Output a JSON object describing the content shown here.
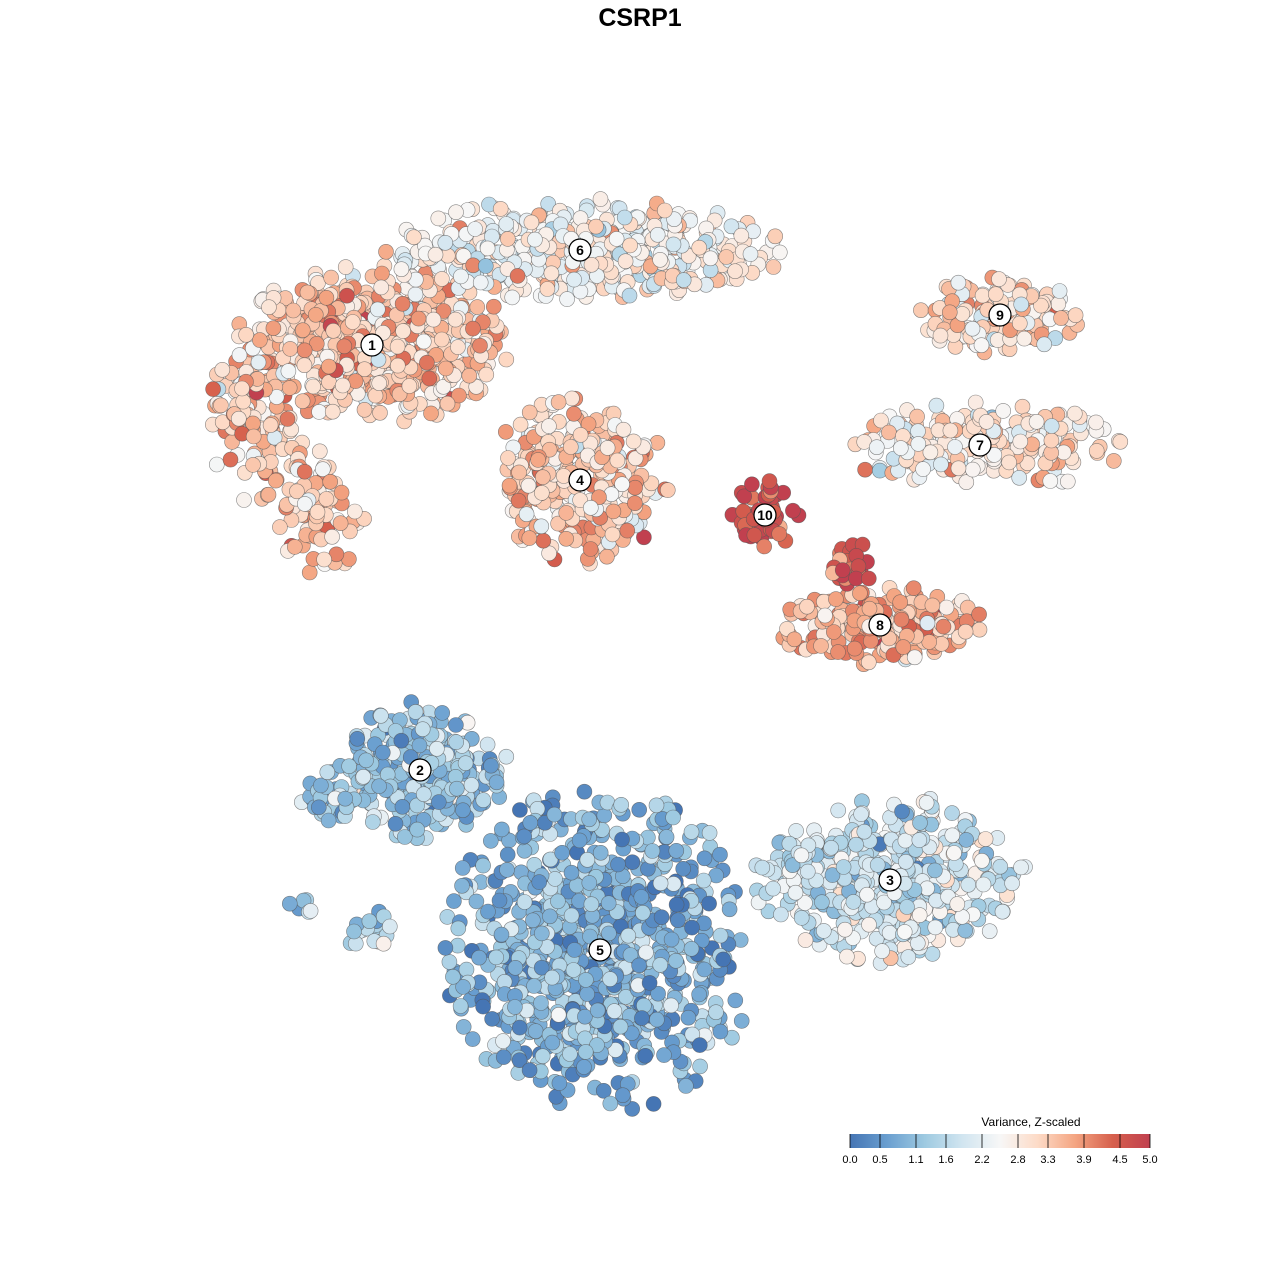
{
  "chart_data": {
    "type": "scatter",
    "title": "CSRP1",
    "legend": {
      "title": "Variance, Z-scaled",
      "placement": "bottom-right",
      "range": [
        0.0,
        5.0
      ],
      "ticks": [
        "0.0",
        "0.5",
        "1.1",
        "1.6",
        "2.2",
        "2.8",
        "3.3",
        "3.9",
        "4.5",
        "5.0"
      ],
      "colors": [
        "#4575b4",
        "#6a9fd0",
        "#9ecae1",
        "#d1e5f0",
        "#f7f7f7",
        "#fddbc7",
        "#f4a582",
        "#d6604d",
        "#c1404f"
      ]
    },
    "grid": false,
    "axes_visible": false,
    "clusters": [
      {
        "label": "1",
        "mean_value": 3.3,
        "regions": [
          [
            372,
            345,
            125,
            70,
            650
          ],
          [
            260,
            440,
            55,
            55,
            60
          ],
          [
            320,
            515,
            40,
            55,
            80
          ],
          [
            240,
            400,
            30,
            40,
            40
          ]
        ]
      },
      {
        "label": "2",
        "mean_value": 1.2,
        "regions": [
          [
            420,
            770,
            80,
            60,
            330
          ],
          [
            330,
            800,
            30,
            25,
            40
          ],
          [
            370,
            930,
            25,
            20,
            20
          ],
          [
            300,
            905,
            12,
            10,
            8
          ]
        ]
      },
      {
        "label": "3",
        "mean_value": 1.9,
        "regions": [
          [
            890,
            880,
            120,
            75,
            500
          ]
        ]
      },
      {
        "label": "4",
        "mean_value": 3.2,
        "regions": [
          [
            580,
            480,
            80,
            75,
            330
          ]
        ]
      },
      {
        "label": "5",
        "mean_value": 0.9,
        "regions": [
          [
            600,
            950,
            140,
            145,
            900
          ]
        ]
      },
      {
        "label": "6",
        "mean_value": 2.6,
        "regions": [
          [
            580,
            250,
            180,
            45,
            500
          ]
        ]
      },
      {
        "label": "7",
        "mean_value": 2.8,
        "regions": [
          [
            980,
            445,
            130,
            40,
            220
          ]
        ]
      },
      {
        "label": "8",
        "mean_value": 3.5,
        "regions": [
          [
            880,
            625,
            95,
            35,
            250
          ]
        ]
      },
      {
        "label": "9",
        "mean_value": 3.0,
        "regions": [
          [
            1000,
            315,
            70,
            35,
            150
          ]
        ]
      },
      {
        "label": "10",
        "mean_value": 4.6,
        "regions": [
          [
            765,
            515,
            30,
            30,
            55
          ],
          [
            850,
            570,
            25,
            25,
            30
          ]
        ]
      }
    ]
  }
}
